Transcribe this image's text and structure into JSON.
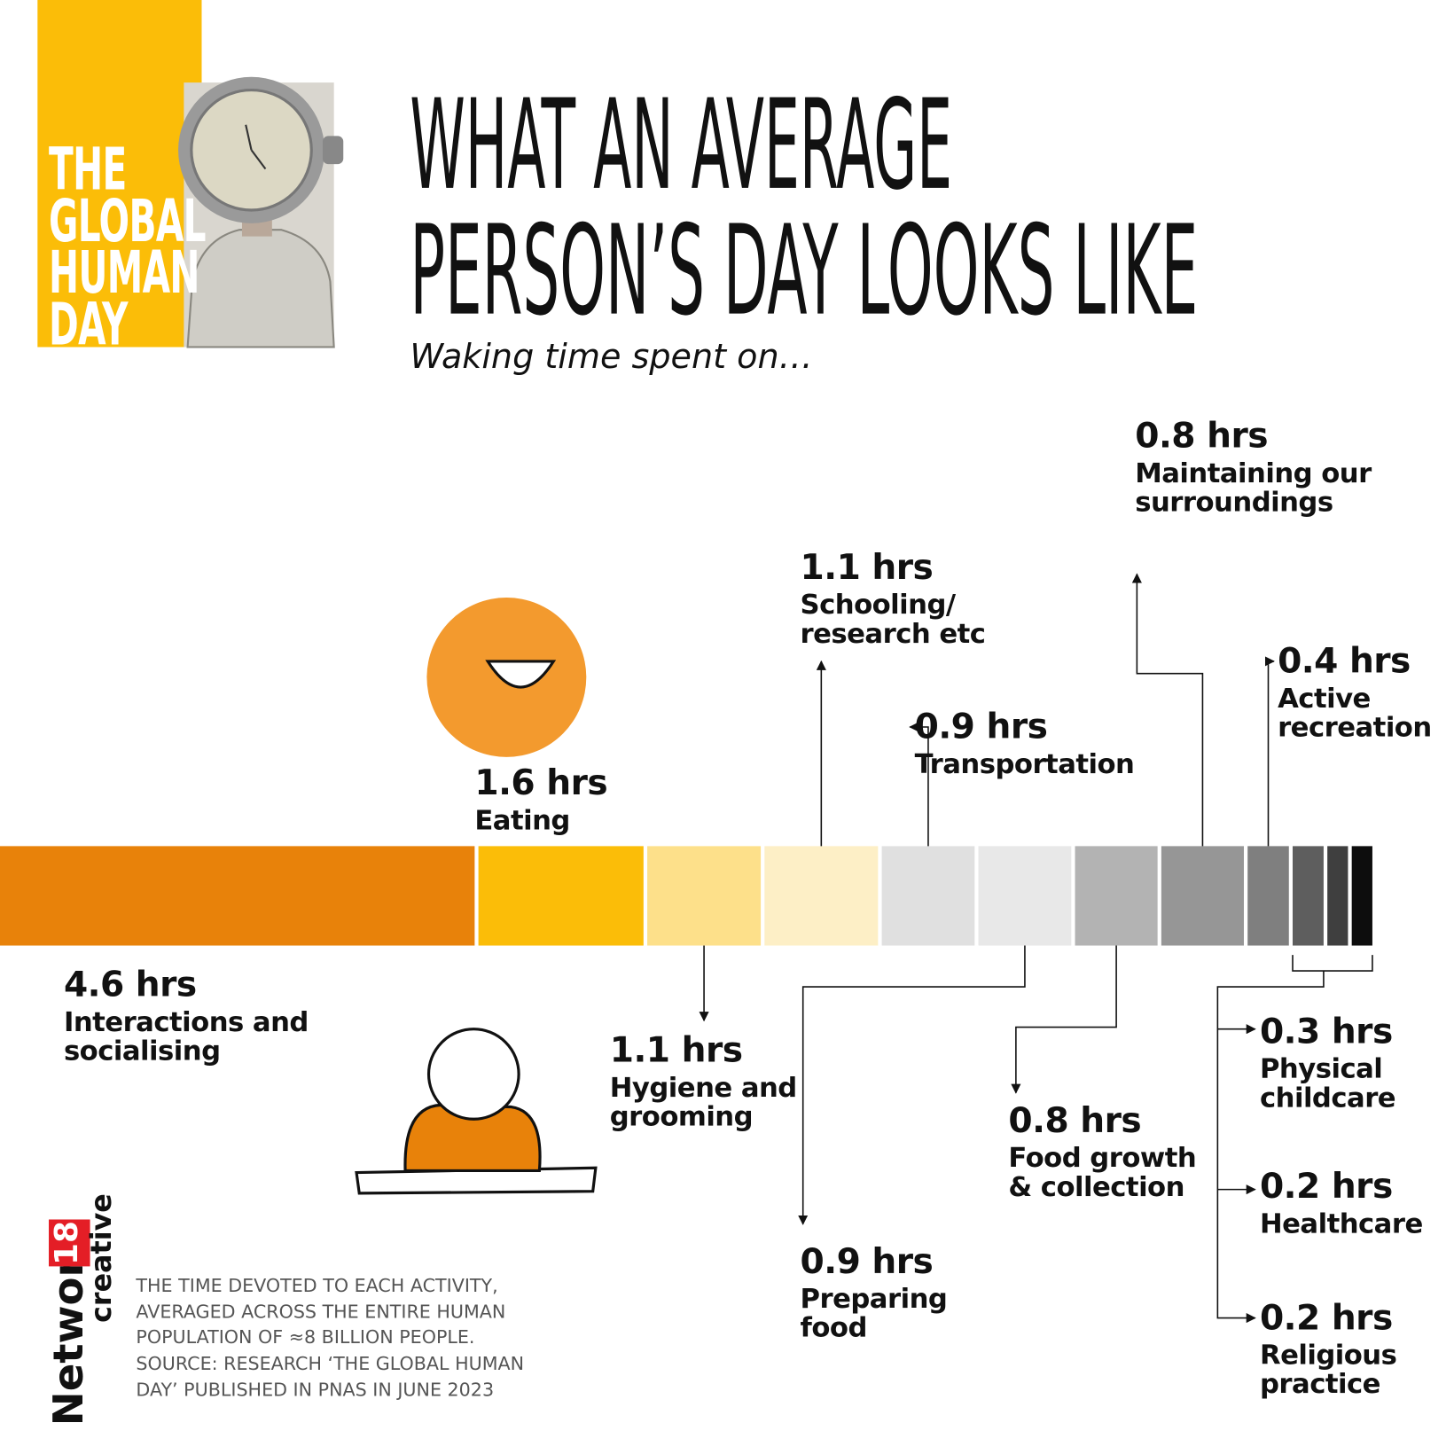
{
  "header": {
    "badge": [
      "THE",
      "GLOBAL",
      "HUMAN",
      "DAY"
    ],
    "title": [
      "WHAT AN AVERAGE",
      "PERSON’S DAY LOOKS LIKE"
    ],
    "subtitle": "Waking time spent on…"
  },
  "chart_data": {
    "type": "segmented-bar",
    "categories": [
      "Interactions and socialising",
      "Eating",
      "Hygiene and grooming",
      "Schooling/ research etc",
      "Transportation",
      "Preparing food",
      "Food growth & collection",
      "Maintaining our surroundings",
      "Active recreation",
      "Physical childcare",
      "Healthcare",
      "Religious practice"
    ],
    "values": [
      4.6,
      1.6,
      1.1,
      1.1,
      0.9,
      0.9,
      0.8,
      0.8,
      0.4,
      0.3,
      0.2,
      0.2
    ],
    "value_labels": [
      "4.6 hrs",
      "1.6 hrs",
      "1.1 hrs",
      "1.1 hrs",
      "0.9 hrs",
      "0.9 hrs",
      "0.8 hrs",
      "0.8 hrs",
      "0.4 hrs",
      "0.3 hrs",
      "0.2 hrs",
      "0.2 hrs"
    ],
    "colors": [
      "#e8820a",
      "#fbbd08",
      "#fde08a",
      "#fdefc6",
      "#e0e0e0",
      "#e8e8e8",
      "#b3b3b3",
      "#969696",
      "#7f7f7f",
      "#5e5e5e",
      "#3f3f3f",
      "#0d0d0d"
    ]
  },
  "footer": {
    "note": "THE TIME DEVOTED TO EACH ACTIVITY, AVERAGED ACROSS THE ENTIRE HUMAN POPULATION OF ≈8 BILLION PEOPLE. SOURCE: RESEARCH ‘THE GLOBAL HUMAN DAY’ PUBLISHED IN PNAS IN JUNE 2023",
    "logo": {
      "name": "Network",
      "number": "18",
      "tagline": "creative"
    }
  }
}
